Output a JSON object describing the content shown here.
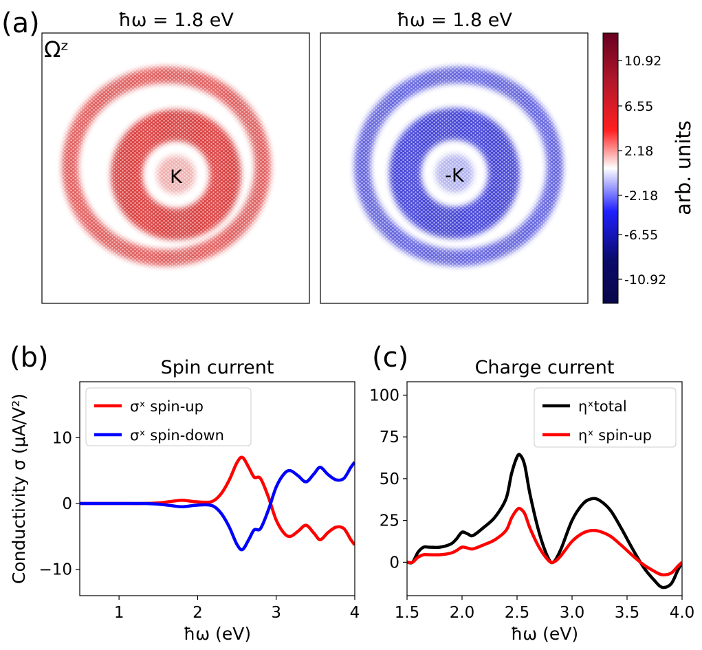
{
  "panel_a": {
    "label": "(a)",
    "map_left": {
      "title": "ħω = 1.8 eV",
      "corner_label": "Ωᶻ",
      "center_label": "K",
      "tint": "#d42020"
    },
    "map_right": {
      "title": "ħω = 1.8 eV",
      "center_label": "-K",
      "tint": "#2424d0"
    },
    "colorbar": {
      "label": "arb. units",
      "ticks": [
        "10.92",
        "6.55",
        "2.18",
        "-2.18",
        "-6.55",
        "-10.92"
      ],
      "colors": [
        "#67001f",
        "#b2182b",
        "#ff2020",
        "#ffffff",
        "#2020ff",
        "#0b0b6b"
      ]
    }
  },
  "panel_b": {
    "label": "(b)"
  },
  "panel_c": {
    "label": "(c)"
  },
  "chart_data": [
    {
      "type": "line",
      "id": "b",
      "title": "Spin current",
      "xlabel": "ħω (eV)",
      "ylabel": "Conductivity σ (μA/V²)",
      "xlim": [
        0.5,
        4.0
      ],
      "ylim": [
        -14,
        18.5
      ],
      "xticks": [
        1,
        2,
        3,
        4
      ],
      "xtick_labels": [
        "1",
        "2",
        "3",
        "4"
      ],
      "yticks": [
        -10,
        0,
        10
      ],
      "ytick_labels": [
        "−10",
        "0",
        "10"
      ],
      "legend_position": "upper-left",
      "series": [
        {
          "name": "σˣ spin-up",
          "color": "#ff0000",
          "x": [
            0.5,
            1.0,
            1.3,
            1.5,
            1.65,
            1.8,
            1.95,
            2.1,
            2.2,
            2.3,
            2.4,
            2.5,
            2.57,
            2.65,
            2.72,
            2.8,
            2.9,
            3.0,
            3.1,
            3.18,
            3.28,
            3.38,
            3.48,
            3.56,
            3.66,
            3.76,
            3.86,
            3.95,
            4.0
          ],
          "y": [
            0,
            0,
            0,
            0.1,
            0.3,
            0.5,
            0.3,
            0.2,
            0.4,
            1.5,
            3.5,
            6.2,
            7.0,
            5.5,
            4.0,
            3.8,
            1.0,
            -2.5,
            -4.5,
            -5.0,
            -4.2,
            -3.3,
            -4.5,
            -5.5,
            -4.4,
            -3.6,
            -3.8,
            -5.5,
            -6.3
          ]
        },
        {
          "name": "σˣ spin-down",
          "color": "#0000ff",
          "x": [
            0.5,
            1.0,
            1.3,
            1.5,
            1.65,
            1.8,
            1.95,
            2.1,
            2.2,
            2.3,
            2.4,
            2.5,
            2.57,
            2.65,
            2.72,
            2.8,
            2.9,
            3.0,
            3.1,
            3.18,
            3.28,
            3.38,
            3.48,
            3.56,
            3.66,
            3.76,
            3.86,
            3.95,
            4.0
          ],
          "y": [
            0,
            0,
            0,
            -0.1,
            -0.3,
            -0.5,
            -0.3,
            -0.2,
            -0.4,
            -1.5,
            -3.5,
            -6.2,
            -7.0,
            -5.5,
            -4.0,
            -3.8,
            -1.0,
            2.5,
            4.5,
            5.0,
            4.2,
            3.3,
            4.5,
            5.5,
            4.4,
            3.6,
            3.8,
            5.5,
            6.3
          ]
        }
      ]
    },
    {
      "type": "line",
      "id": "c",
      "title": "Charge current",
      "xlabel": "ħω (eV)",
      "ylabel": "",
      "xlim": [
        1.5,
        4.0
      ],
      "ylim": [
        -20,
        108
      ],
      "xticks": [
        1.5,
        2.0,
        2.5,
        3.0,
        3.5,
        4.0
      ],
      "xtick_labels": [
        "1.5",
        "2.0",
        "2.5",
        "3.0",
        "3.5",
        "4.0"
      ],
      "yticks": [
        0,
        25,
        50,
        75,
        100
      ],
      "ytick_labels": [
        "0",
        "25",
        "50",
        "75",
        "100"
      ],
      "legend_position": "upper-right",
      "series": [
        {
          "name": "ηˣtotal",
          "color": "#000000",
          "x": [
            1.5,
            1.55,
            1.6,
            1.65,
            1.7,
            1.8,
            1.9,
            1.95,
            2.0,
            2.05,
            2.1,
            2.2,
            2.3,
            2.4,
            2.45,
            2.5,
            2.53,
            2.57,
            2.62,
            2.7,
            2.78,
            2.83,
            2.9,
            3.0,
            3.1,
            3.18,
            3.25,
            3.35,
            3.45,
            3.55,
            3.65,
            3.75,
            3.82,
            3.9,
            3.96,
            4.0
          ],
          "y": [
            0,
            0,
            6,
            9,
            9,
            9,
            11,
            14,
            18,
            17,
            16,
            21,
            27,
            38,
            53,
            63,
            64,
            58,
            40,
            18,
            3,
            0,
            8,
            25,
            35,
            38,
            37,
            31,
            20,
            8,
            -3,
            -11,
            -15,
            -13,
            -5,
            0
          ]
        },
        {
          "name": "ηˣ spin-up",
          "color": "#ff0000",
          "x": [
            1.5,
            1.55,
            1.6,
            1.65,
            1.7,
            1.8,
            1.9,
            1.95,
            2.0,
            2.05,
            2.1,
            2.2,
            2.3,
            2.4,
            2.45,
            2.5,
            2.53,
            2.57,
            2.62,
            2.7,
            2.78,
            2.83,
            2.9,
            3.0,
            3.1,
            3.18,
            3.25,
            3.35,
            3.45,
            3.55,
            3.65,
            3.75,
            3.82,
            3.9,
            3.96,
            4.0
          ],
          "y": [
            0,
            0,
            3,
            4.5,
            4.5,
            4.5,
            5.5,
            7,
            9,
            8.5,
            8,
            10.5,
            13.5,
            19,
            26.5,
            31.5,
            32,
            29,
            20,
            9,
            1.5,
            0,
            4,
            12.5,
            17.5,
            19,
            18.5,
            15.5,
            10,
            4,
            -1.5,
            -5.5,
            -7.5,
            -6.5,
            -2.5,
            0
          ]
        }
      ]
    }
  ]
}
